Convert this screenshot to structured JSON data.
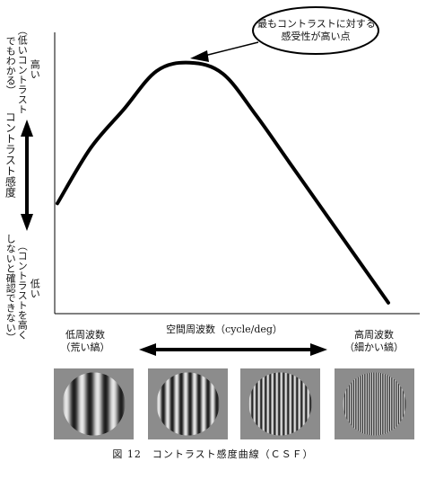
{
  "bubble": {
    "line1": "最もコントラストに対する",
    "line2": "感受性が高い点"
  },
  "y_axis": {
    "label": "コントラスト感度",
    "high_label": "高い",
    "high_note_line1": "（低いコントラスト",
    "high_note_line2": "でもわかる）",
    "low_label": "低い",
    "low_note_line1": "（コントラストを高く",
    "low_note_line2": "しないと確認できない）"
  },
  "x_axis": {
    "label": "空間周波数（cycle/deg）",
    "low_label": "低周波数",
    "low_note": "（荒い縞）",
    "high_label": "高周波数",
    "high_note": "（細かい縞）"
  },
  "caption": "図 12　コントラスト感度曲線（ＣＳＦ）",
  "colors": {
    "line": "#000000",
    "patch_background": "#8c8c8c"
  },
  "chart_data": {
    "type": "line",
    "title": "",
    "xlabel": "空間周波数（cycle/deg）",
    "ylabel": "コントラスト感度",
    "xlim": [
      0,
      1
    ],
    "ylim": [
      0,
      1
    ],
    "x": [
      0.0,
      0.1,
      0.2,
      0.3,
      0.4,
      0.5,
      0.6,
      0.7,
      0.8,
      0.9,
      1.0
    ],
    "y": [
      0.38,
      0.58,
      0.72,
      0.86,
      0.89,
      0.85,
      0.7,
      0.53,
      0.36,
      0.19,
      0.02
    ],
    "annotations": [
      "最もコントラストに対する感受性が高い点"
    ]
  },
  "gratings": [
    {
      "name": "very-low",
      "stripes": 4
    },
    {
      "name": "low",
      "stripes": 7
    },
    {
      "name": "medium",
      "stripes": 14
    },
    {
      "name": "high",
      "stripes": 28
    }
  ]
}
